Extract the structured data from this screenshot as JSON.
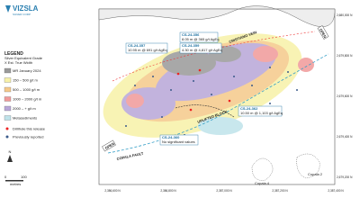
{
  "logo": {
    "name": "VIZSLA",
    "tagline": "SILVER CORP"
  },
  "legend": {
    "title": "LEGEND",
    "subtitle": "Silver Equivalent Grade",
    "note": "X Est. True Width",
    "items": [
      "MR January 2024",
      "150 – 500 g/t m",
      "500 – 1000 g/t m",
      "1000 – 2000 g/t m",
      "2000 – + g/t m",
      "Metasediments"
    ],
    "symbols": [
      "Drillhole this release",
      "Previously reported"
    ]
  },
  "callouts": [
    {
      "hole": "CS-24-356",
      "result": "8.05 m @ 365 g/t AgEq"
    },
    {
      "hole": "CS-24-359",
      "result": "4.30 m @ 4,817 g/t AgEq"
    },
    {
      "hole": "CS-24-357",
      "result": "10.95 m @ 691 g/t AgEq"
    },
    {
      "hole": "CS-24-362",
      "result": "10.50 m @ 1,103 g/t AgEq"
    },
    {
      "hole": "CS-24-360",
      "result": "No significant values"
    }
  ],
  "labels": {
    "vein": "CRISTIANO VEIN",
    "block": "UPLIFTED BLOCK",
    "fault": "COPALA FAULT",
    "open_left": "OPEN",
    "open_right": "OPEN",
    "copala4": "Copala 4",
    "copala2": "Copala 2",
    "north": "N"
  },
  "scale": {
    "zero": "0",
    "end": "100",
    "unit": "metres"
  },
  "coords": {
    "bottom": [
      "2,386,600 N",
      "2,386,800 N",
      "2,387,000 N",
      "2,387,200 N",
      "2,387,400 N"
    ],
    "right": [
      "2,680,000 N",
      "2,679,800 N",
      "2,679,600 N",
      "2,679,400 N",
      "2,679,200 N"
    ]
  }
}
